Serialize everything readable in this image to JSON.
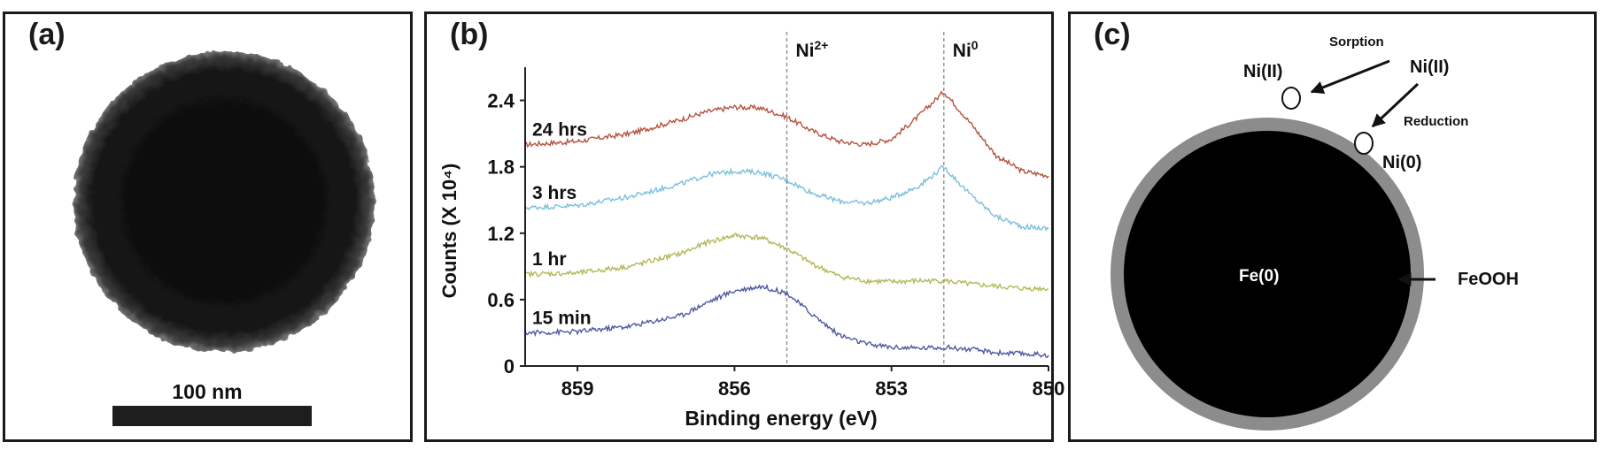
{
  "panel_a": {
    "label": "(a)",
    "scale_bar_label": "100 nm"
  },
  "panel_b": {
    "label": "(b)"
  },
  "panel_c": {
    "label": "(c)",
    "labels": {
      "sorption": "Sorption",
      "reduction": "Reduction",
      "ni_ii_left": "Ni(II)",
      "ni_ii_right": "Ni(II)",
      "ni_0": "Ni(0)",
      "core": "Fe(0)",
      "shell": "FeOOH"
    },
    "colors": {
      "core": "#000000",
      "shell": "#8c8c8c"
    }
  },
  "chart_data": {
    "type": "line",
    "title": "",
    "xlabel": "Binding energy (eV)",
    "ylabel": "Counts (X 10⁴)",
    "xlim": [
      860.0,
      850.0
    ],
    "ylim": [
      0,
      2.7
    ],
    "x_reversed": true,
    "xticks": [
      859,
      856,
      853,
      850
    ],
    "yticks": [
      0,
      0.6,
      1.2,
      1.8,
      2.4
    ],
    "ytick_labels": [
      "0",
      "0.6",
      "1.2",
      "1.8",
      "2.4"
    ],
    "grid": false,
    "reference_lines": [
      {
        "x": 855.0,
        "label_main": "Ni",
        "label_sup": "2+"
      },
      {
        "x": 852.0,
        "label_main": "Ni",
        "label_sup": "0"
      }
    ],
    "x": [
      860.0,
      859.0,
      858.0,
      857.0,
      856.5,
      856.0,
      855.5,
      855.0,
      854.5,
      854.0,
      853.5,
      853.0,
      852.5,
      852.0,
      851.5,
      851.0,
      850.5,
      850.0
    ],
    "series": [
      {
        "name": "24 hrs",
        "color": "#b5553f",
        "values": [
          2.0,
          2.03,
          2.1,
          2.23,
          2.3,
          2.34,
          2.33,
          2.25,
          2.12,
          2.03,
          2.0,
          2.05,
          2.25,
          2.48,
          2.2,
          1.9,
          1.76,
          1.72
        ]
      },
      {
        "name": "3 hrs",
        "color": "#7dc0dc",
        "values": [
          1.43,
          1.45,
          1.53,
          1.65,
          1.73,
          1.76,
          1.75,
          1.68,
          1.56,
          1.49,
          1.47,
          1.52,
          1.62,
          1.8,
          1.55,
          1.35,
          1.26,
          1.24
        ]
      },
      {
        "name": "1 hr",
        "color": "#b3b857",
        "values": [
          0.83,
          0.84,
          0.9,
          1.02,
          1.12,
          1.18,
          1.16,
          1.06,
          0.92,
          0.81,
          0.77,
          0.76,
          0.77,
          0.77,
          0.74,
          0.72,
          0.7,
          0.7
        ]
      },
      {
        "name": "15 min",
        "color": "#4f5aa3",
        "values": [
          0.3,
          0.31,
          0.36,
          0.46,
          0.58,
          0.68,
          0.72,
          0.66,
          0.46,
          0.28,
          0.2,
          0.17,
          0.16,
          0.17,
          0.15,
          0.12,
          0.11,
          0.1
        ]
      }
    ]
  }
}
